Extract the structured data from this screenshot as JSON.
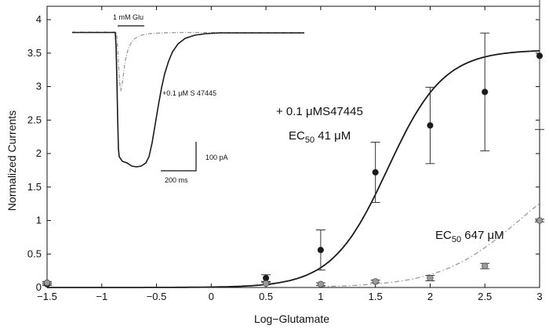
{
  "chart_data": {
    "type": "scatter",
    "title": "",
    "xlabel": "Log−Glutamate",
    "ylabel": "Normalized Currents",
    "xlim": [
      -1.5,
      3
    ],
    "ylim": [
      0,
      4.2
    ],
    "xticks": [
      -1.5,
      -1,
      -0.5,
      0,
      0.5,
      1,
      1.5,
      2,
      2.5,
      3
    ],
    "xtick_labels": [
      "−1.5",
      "−1",
      "−0.5",
      "0",
      "0.5",
      "1",
      "1.5",
      "2",
      "2.5",
      "3"
    ],
    "yticks": [
      0,
      0.5,
      1,
      1.5,
      2,
      2.5,
      3,
      3.5,
      4
    ],
    "ytick_labels": [
      "0",
      "0.5",
      "1",
      "1.5",
      "2",
      "2.5",
      "3",
      "3.5",
      "4"
    ],
    "grid": false,
    "series": [
      {
        "marker_color": "#1a1a1a",
        "line_style": "solid",
        "points": [
          {
            "x": -1.5,
            "y": 0.05,
            "err": 0.02
          },
          {
            "x": 0.5,
            "y": 0.14,
            "err": 0.05
          },
          {
            "x": 1,
            "y": 0.56,
            "err": 0.3
          },
          {
            "x": 1.5,
            "y": 1.72,
            "err": 0.45
          },
          {
            "x": 2,
            "y": 2.42,
            "err": 0.57
          },
          {
            "x": 2.5,
            "y": 2.92,
            "err": 0.88
          },
          {
            "x": 3,
            "y": 3.46,
            "err": 1.1
          }
        ],
        "fit": {
          "bottom": 0,
          "top": 3.55,
          "log_ec50": 1.6128,
          "hill": 1.7
        }
      },
      {
        "marker_color": "#9a9a9a",
        "line_style": "dashdot",
        "points": [
          {
            "x": -1.5,
            "y": 0.07,
            "err": 0.02
          },
          {
            "x": 0.5,
            "y": 0.06,
            "err": 0.02
          },
          {
            "x": 1,
            "y": 0.05,
            "err": 0.02
          },
          {
            "x": 1.5,
            "y": 0.09,
            "err": 0.02
          },
          {
            "x": 2,
            "y": 0.14,
            "err": 0.04
          },
          {
            "x": 2.5,
            "y": 0.32,
            "err": 0.04
          },
          {
            "x": 3,
            "y": 1.0,
            "err": 0.02
          }
        ],
        "fit": {
          "bottom": 0,
          "top": 2.0,
          "log_ec50": 2.811,
          "hill": 1.2
        }
      }
    ],
    "annotations": {
      "enhanced_title": "+ 0.1 μMS47445",
      "enhanced_ec50_prefix": "EC",
      "enhanced_ec50_sub": "50",
      "enhanced_ec50_value": " 41 μM",
      "control_ec50_prefix": "EC",
      "control_ec50_sub": "50",
      "control_ec50_value": " 647 μM"
    },
    "inset": {
      "stimulus_label": "1 mM Glu",
      "trace_label": "+0.1 μM S 47445",
      "scale_current": "100 pA",
      "scale_time": "200 ms",
      "control_trace_color": "#9a9a9a",
      "drug_trace_color": "#1a1a1a"
    }
  }
}
